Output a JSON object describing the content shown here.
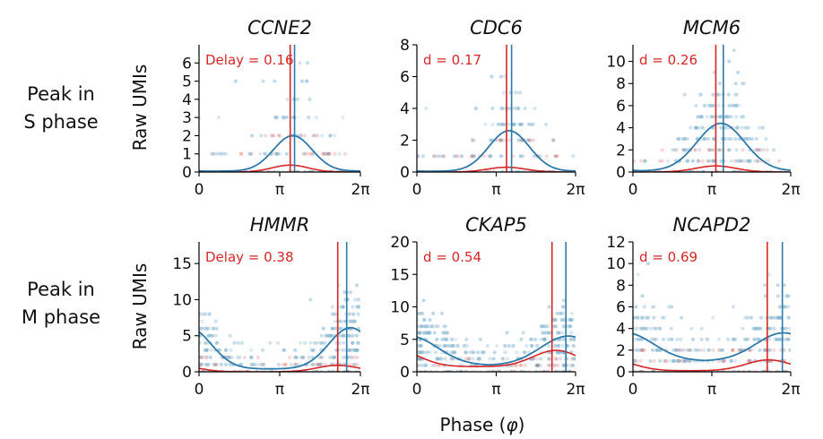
{
  "figure": {
    "row_labels": [
      [
        "Peak in",
        "S phase"
      ],
      [
        "Peak in",
        "M phase"
      ]
    ],
    "ylabel": "Raw UMIs",
    "xlabel_prefix": "Phase (",
    "xlabel_symbol": "φ",
    "xlabel_suffix": ")",
    "x_ticks": [
      "0",
      "π",
      "2π"
    ],
    "colors": {
      "model_blue": "#2f7aa8",
      "delay_red": "#d62728",
      "dots": "#7fb2cc"
    }
  },
  "chart_data": [
    {
      "type": "scatter",
      "title": "CCNE2",
      "annotation": "Delay = 0.16",
      "xlim": [
        0,
        6.2832
      ],
      "ylim": [
        0,
        7
      ],
      "yticks": [
        0,
        1,
        2,
        3,
        4,
        5,
        6
      ],
      "x_data_values": [
        0,
        3.1416,
        6.2832
      ],
      "blue_curve": {
        "mu": 3.65,
        "peak": 2.0,
        "base": 0.05,
        "width": 0.75
      },
      "red_curve": {
        "mu": 3.55,
        "peak": 0.38,
        "base": 0.0,
        "width": 0.7
      },
      "blue_vline": 3.72,
      "red_vline": 3.55,
      "max_count": 6
    },
    {
      "type": "scatter",
      "title": "CDC6",
      "annotation": "d = 0.17",
      "xlim": [
        0,
        6.2832
      ],
      "ylim": [
        0,
        8
      ],
      "yticks": [
        0,
        2,
        4,
        6,
        8
      ],
      "x_data_values": [
        0,
        3.1416,
        6.2832
      ],
      "blue_curve": {
        "mu": 3.65,
        "peak": 2.6,
        "base": 0.05,
        "width": 0.8
      },
      "red_curve": {
        "mu": 3.55,
        "peak": 0.3,
        "base": 0.0,
        "width": 0.75
      },
      "blue_vline": 3.75,
      "red_vline": 3.55,
      "max_count": 7
    },
    {
      "type": "scatter",
      "title": "MCM6",
      "annotation": "d = 0.26",
      "xlim": [
        0,
        6.2832
      ],
      "ylim": [
        0,
        11.5
      ],
      "yticks": [
        0,
        2,
        4,
        6,
        8,
        10
      ],
      "x_data_values": [
        0,
        3.1416,
        6.2832
      ],
      "blue_curve": {
        "mu": 3.5,
        "peak": 4.4,
        "base": 0.1,
        "width": 0.95
      },
      "red_curve": {
        "mu": 3.3,
        "peak": 0.55,
        "base": 0.0,
        "width": 0.8
      },
      "blue_vline": 3.6,
      "red_vline": 3.3,
      "max_count": 11
    },
    {
      "type": "scatter",
      "title": "HMMR",
      "annotation": "Delay = 0.38",
      "xlim": [
        0,
        6.2832
      ],
      "ylim": [
        0,
        18
      ],
      "yticks": [
        0,
        5,
        10,
        15
      ],
      "x_data_values": [
        0,
        3.1416,
        6.2832
      ],
      "blue_curve": {
        "mu": 5.9,
        "peak": 6.1,
        "base": 0.4,
        "width": 0.85
      },
      "red_curve": {
        "mu": 5.4,
        "peak": 0.9,
        "base": 0.0,
        "width": 0.8
      },
      "blue_vline": 5.75,
      "red_vline": 5.4,
      "max_count": 17
    },
    {
      "type": "scatter",
      "title": "CKAP5",
      "annotation": "d = 0.54",
      "xlim": [
        0,
        6.2832
      ],
      "ylim": [
        0,
        20
      ],
      "yticks": [
        0,
        5,
        10,
        15,
        20
      ],
      "x_data_values": [
        0,
        3.1416,
        6.2832
      ],
      "blue_curve": {
        "mu": 6.0,
        "peak": 5.5,
        "base": 1.0,
        "width": 1.1
      },
      "red_curve": {
        "mu": 5.5,
        "peak": 3.3,
        "base": 0.8,
        "width": 0.9
      },
      "blue_vline": 5.9,
      "red_vline": 5.35,
      "max_count": 19
    },
    {
      "type": "scatter",
      "title": "NCAPD2",
      "annotation": "d = 0.69",
      "xlim": [
        0,
        6.2832
      ],
      "ylim": [
        0,
        12
      ],
      "yticks": [
        0,
        2,
        4,
        6,
        8,
        10,
        12
      ],
      "x_data_values": [
        0,
        3.1416,
        6.2832
      ],
      "blue_curve": {
        "mu": 6.0,
        "peak": 3.6,
        "base": 1.0,
        "width": 1.1
      },
      "red_curve": {
        "mu": 5.4,
        "peak": 1.1,
        "base": 0.1,
        "width": 0.9
      },
      "blue_vline": 5.95,
      "red_vline": 5.35,
      "max_count": 11
    }
  ]
}
